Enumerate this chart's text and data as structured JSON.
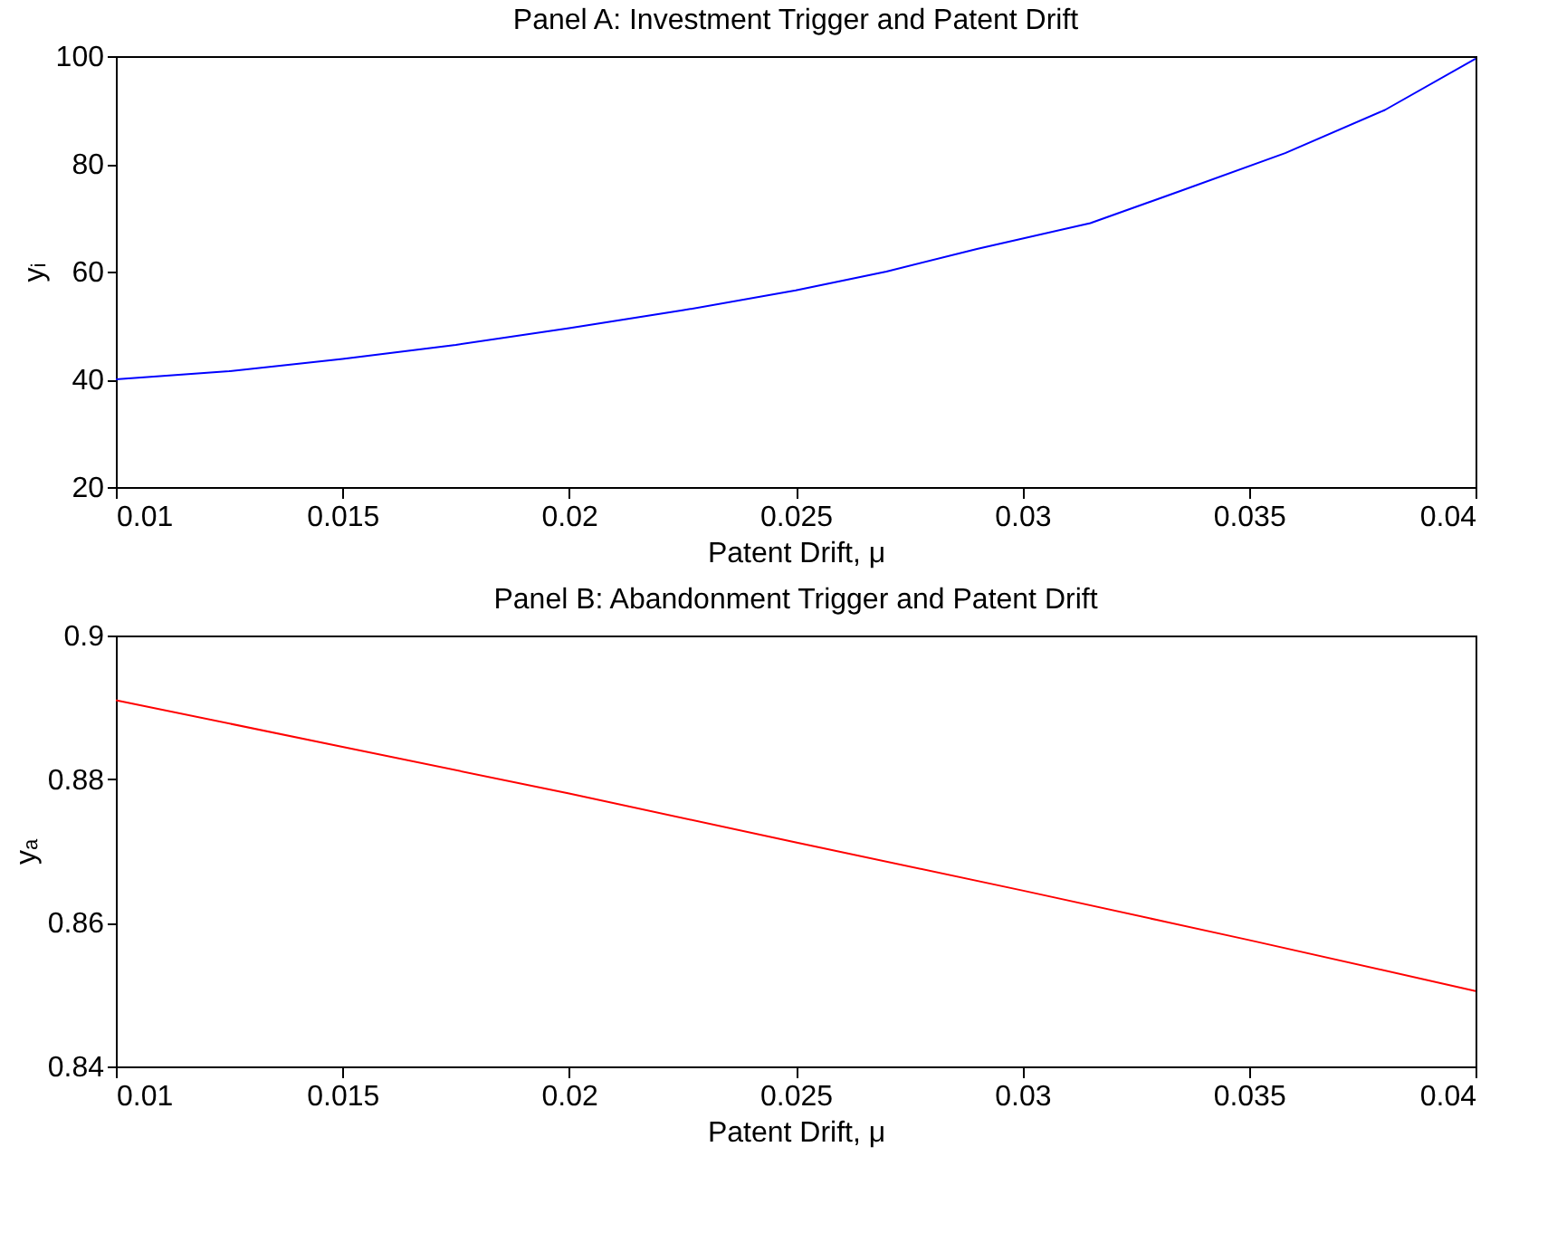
{
  "chart_data": [
    {
      "type": "line",
      "title": "Panel A: Investment Trigger and Patent Drift",
      "xlabel": "Patent Drift, μ",
      "ylabel": "yᵢ",
      "x": [
        0.01,
        0.0125,
        0.015,
        0.0175,
        0.02,
        0.0225,
        0.025,
        0.027,
        0.029,
        0.0315,
        0.0335,
        0.0358,
        0.038,
        0.04
      ],
      "series": [
        {
          "color": "#0000ff",
          "values": [
            40,
            41.5,
            43.8,
            46.4,
            49.5,
            52.8,
            56.5,
            60,
            64.2,
            69,
            75,
            82,
            90,
            99.5
          ]
        }
      ],
      "xlim": [
        0.01,
        0.04
      ],
      "xticks": [
        0.01,
        0.015,
        0.02,
        0.025,
        0.03,
        0.035,
        0.04
      ],
      "ylim": [
        20,
        100
      ],
      "yticks": [
        20,
        40,
        60,
        80,
        100
      ],
      "grid": false
    },
    {
      "type": "line",
      "title": "Panel B: Abandonment Trigger and Patent Drift",
      "xlabel": "Patent Drift, μ",
      "ylabel": "yₐ",
      "x": [
        0.01,
        0.015,
        0.02,
        0.025,
        0.03,
        0.035,
        0.04
      ],
      "series": [
        {
          "color": "#ff0000",
          "values": [
            0.891,
            0.8845,
            0.878,
            0.8712,
            0.8645,
            0.8576,
            0.8505
          ]
        }
      ],
      "xlim": [
        0.01,
        0.04
      ],
      "xticks": [
        0.01,
        0.015,
        0.02,
        0.025,
        0.03,
        0.035,
        0.04
      ],
      "ylim": [
        0.84,
        0.9
      ],
      "yticks": [
        0.84,
        0.86,
        0.88,
        0.9
      ],
      "grid": false
    }
  ]
}
